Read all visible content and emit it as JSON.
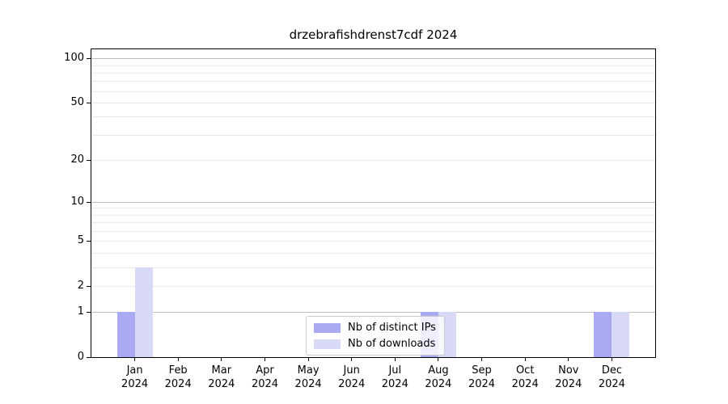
{
  "chart_data": {
    "type": "bar",
    "title": "drzebrafishdrenst7cdf 2024",
    "categories": [
      {
        "label": "Jan",
        "sublabel": "2024"
      },
      {
        "label": "Feb",
        "sublabel": "2024"
      },
      {
        "label": "Mar",
        "sublabel": "2024"
      },
      {
        "label": "Apr",
        "sublabel": "2024"
      },
      {
        "label": "May",
        "sublabel": "2024"
      },
      {
        "label": "Jun",
        "sublabel": "2024"
      },
      {
        "label": "Jul",
        "sublabel": "2024"
      },
      {
        "label": "Aug",
        "sublabel": "2024"
      },
      {
        "label": "Sep",
        "sublabel": "2024"
      },
      {
        "label": "Oct",
        "sublabel": "2024"
      },
      {
        "label": "Nov",
        "sublabel": "2024"
      },
      {
        "label": "Dec",
        "sublabel": "2024"
      }
    ],
    "series": [
      {
        "name": "Nb of distinct IPs",
        "color": "#aaaaf2",
        "values": [
          1,
          0,
          0,
          0,
          0,
          0,
          0,
          1,
          0,
          0,
          0,
          1
        ]
      },
      {
        "name": "Nb of downloads",
        "color": "#d8d8f7",
        "values": [
          3,
          0,
          0,
          0,
          0,
          0,
          0,
          1,
          0,
          0,
          0,
          1
        ]
      }
    ],
    "xlabel": "",
    "ylabel": "",
    "yscale": "log1p",
    "ylim": [
      0,
      115
    ],
    "ytick_labels": [
      0,
      1,
      2,
      5,
      10,
      20,
      50,
      100
    ],
    "grid": {
      "major": [
        1,
        10,
        100
      ],
      "minor": [
        2,
        3,
        4,
        5,
        6,
        7,
        8,
        9,
        20,
        30,
        40,
        50,
        60,
        70,
        80,
        90
      ]
    },
    "legend": {
      "position": "lower center",
      "entries": [
        "Nb of distinct IPs",
        "Nb of downloads"
      ]
    },
    "colors": {
      "major_grid": "#bcbcbc",
      "minor_grid": "#e9e9e9",
      "axis": "#000000",
      "text": "#000000",
      "legend_border": "#cccccc"
    }
  }
}
